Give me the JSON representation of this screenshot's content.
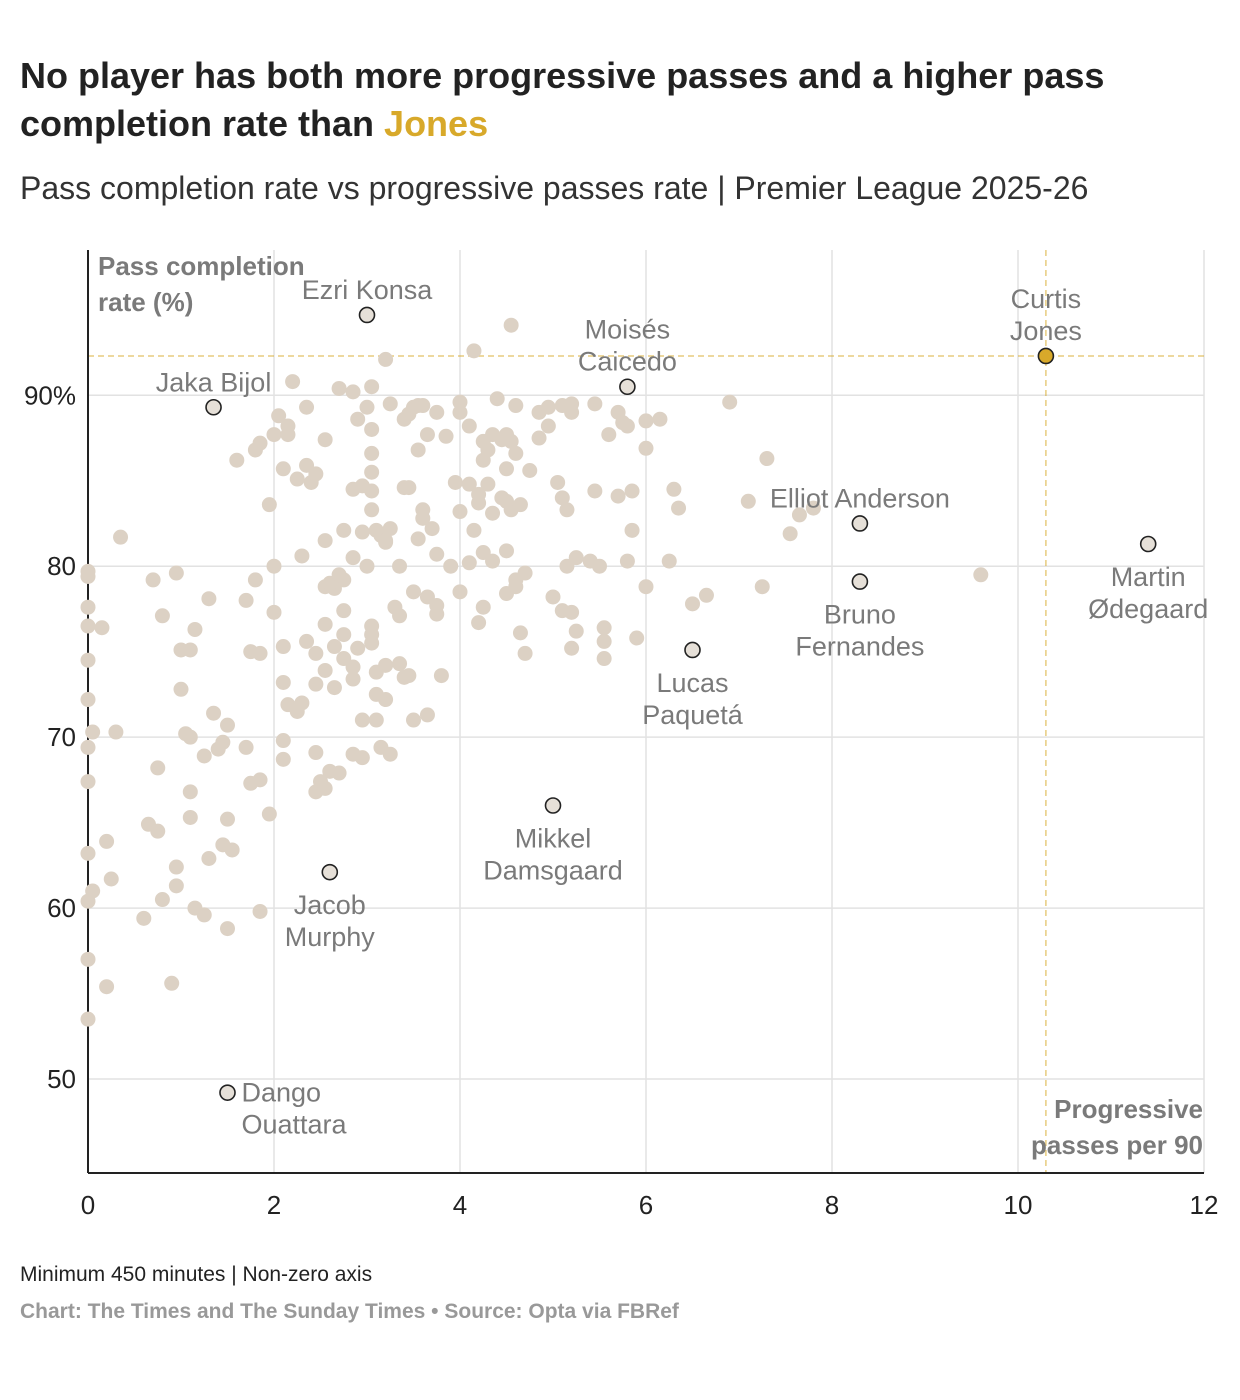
{
  "header": {
    "title_main": "No player has both more progressive passes and a higher pass completion rate than ",
    "title_highlight": "Jones",
    "subtitle": "Pass completion rate vs progressive passes rate | Premier League 2025-26"
  },
  "footer": {
    "note": "Minimum 450 minutes | Non-zero axis",
    "credit": "Chart: The Times and The Sunday Times",
    "separator": " • ",
    "source": "Source: Opta via FBRef"
  },
  "colors": {
    "accent": "#d8a92a",
    "dot": "#dcd1c4",
    "highlight_dot": "#e6e0d8",
    "grid": "#e2e2e2",
    "label": "#7a7a7a"
  },
  "chart_data": {
    "type": "scatter",
    "title": "No player has both more progressive passes and a higher pass completion rate than Jones",
    "subtitle": "Pass completion rate vs progressive passes rate | Premier League 2025-26",
    "xlabel": "Progressive passes per 90",
    "ylabel": "Pass completion rate (%)",
    "xlim": [
      0,
      12
    ],
    "ylim": [
      44.5,
      98.5
    ],
    "xticks": [
      0,
      2,
      4,
      6,
      8,
      10,
      12
    ],
    "yticks": [
      50,
      60,
      70,
      80,
      90
    ],
    "ytick_labels": [
      "50",
      "60",
      "70",
      "80",
      "90%"
    ],
    "reference_lines": {
      "x": 10.3,
      "y": 92.3
    },
    "highlight": {
      "name": "Curtis Jones",
      "x": 10.3,
      "y": 92.3
    },
    "labelled_players": [
      {
        "name": "Ezri Konsa",
        "lines": [
          "Ezri Konsa"
        ],
        "x": 3.0,
        "y": 94.7,
        "label_pos": "above"
      },
      {
        "name": "Jaka Bijol",
        "lines": [
          "Jaka Bijol"
        ],
        "x": 1.35,
        "y": 89.3,
        "label_pos": "above"
      },
      {
        "name": "Moisés Caicedo",
        "lines": [
          "Moisés",
          "Caicedo"
        ],
        "x": 5.8,
        "y": 90.5,
        "label_pos": "above"
      },
      {
        "name": "Curtis Jones",
        "lines": [
          "Curtis",
          "Jones"
        ],
        "x": 10.3,
        "y": 92.3,
        "label_pos": "above"
      },
      {
        "name": "Elliot Anderson",
        "lines": [
          "Elliot Anderson"
        ],
        "x": 8.3,
        "y": 82.5,
        "label_pos": "above"
      },
      {
        "name": "Martin Ødegaard",
        "lines": [
          "Martin",
          "Ødegaard"
        ],
        "x": 11.4,
        "y": 81.3,
        "label_pos": "below"
      },
      {
        "name": "Bruno Fernandes",
        "lines": [
          "Bruno",
          "Fernandes"
        ],
        "x": 8.3,
        "y": 79.1,
        "label_pos": "below"
      },
      {
        "name": "Lucas Paquetá",
        "lines": [
          "Lucas",
          "Paquetá"
        ],
        "x": 6.5,
        "y": 75.1,
        "label_pos": "below"
      },
      {
        "name": "Mikkel Damsgaard",
        "lines": [
          "Mikkel",
          "Damsgaard"
        ],
        "x": 5.0,
        "y": 66.0,
        "label_pos": "below"
      },
      {
        "name": "Jacob Murphy",
        "lines": [
          "Jacob",
          "Murphy"
        ],
        "x": 2.6,
        "y": 62.1,
        "label_pos": "below"
      },
      {
        "name": "Dango Ouattara",
        "lines": [
          "Dango",
          "Ouattara"
        ],
        "x": 1.5,
        "y": 49.2,
        "label_pos": "right"
      }
    ],
    "series": [
      {
        "name": "Other players",
        "points": [
          [
            0.0,
            53.5
          ],
          [
            0.0,
            57.0
          ],
          [
            0.2,
            55.4
          ],
          [
            0.9,
            55.6
          ],
          [
            0.0,
            60.4
          ],
          [
            0.05,
            61.0
          ],
          [
            0.25,
            61.7
          ],
          [
            0.0,
            63.2
          ],
          [
            0.2,
            63.9
          ],
          [
            0.6,
            59.4
          ],
          [
            0.8,
            60.5
          ],
          [
            0.95,
            61.3
          ],
          [
            0.95,
            62.4
          ],
          [
            1.15,
            60.0
          ],
          [
            1.25,
            59.6
          ],
          [
            1.5,
            58.8
          ],
          [
            1.55,
            63.4
          ],
          [
            1.3,
            62.9
          ],
          [
            1.45,
            63.7
          ],
          [
            1.85,
            59.8
          ],
          [
            0.0,
            67.4
          ],
          [
            0.0,
            69.4
          ],
          [
            0.05,
            70.3
          ],
          [
            0.3,
            70.3
          ],
          [
            0.75,
            68.2
          ],
          [
            0.65,
            64.9
          ],
          [
            0.75,
            64.5
          ],
          [
            1.1,
            66.8
          ],
          [
            1.1,
            65.3
          ],
          [
            1.25,
            68.9
          ],
          [
            1.05,
            70.2
          ],
          [
            1.1,
            70.0
          ],
          [
            1.35,
            71.4
          ],
          [
            1.45,
            69.7
          ],
          [
            1.5,
            70.7
          ],
          [
            1.4,
            69.3
          ],
          [
            1.5,
            65.2
          ],
          [
            1.75,
            67.3
          ],
          [
            1.7,
            69.4
          ],
          [
            1.85,
            67.5
          ],
          [
            1.95,
            65.5
          ],
          [
            2.1,
            68.7
          ],
          [
            2.1,
            69.8
          ],
          [
            2.25,
            71.5
          ],
          [
            2.3,
            72.0
          ],
          [
            2.15,
            71.9
          ],
          [
            2.45,
            66.8
          ],
          [
            2.45,
            69.1
          ],
          [
            2.5,
            67.4
          ],
          [
            2.55,
            67.0
          ],
          [
            2.6,
            68.0
          ],
          [
            2.7,
            67.9
          ],
          [
            2.65,
            72.9
          ],
          [
            2.55,
            73.9
          ],
          [
            2.45,
            73.1
          ],
          [
            2.1,
            73.2
          ],
          [
            2.85,
            69.0
          ],
          [
            2.95,
            68.8
          ],
          [
            2.95,
            71.0
          ],
          [
            3.1,
            71.0
          ],
          [
            3.15,
            69.4
          ],
          [
            3.25,
            69.0
          ],
          [
            3.2,
            72.2
          ],
          [
            3.1,
            72.5
          ],
          [
            3.1,
            73.8
          ],
          [
            3.2,
            74.2
          ],
          [
            3.05,
            75.5
          ],
          [
            3.05,
            76.0
          ],
          [
            2.85,
            74.1
          ],
          [
            2.75,
            74.6
          ],
          [
            2.85,
            73.4
          ],
          [
            3.35,
            74.3
          ],
          [
            3.4,
            73.5
          ],
          [
            3.45,
            73.6
          ],
          [
            3.5,
            71.0
          ],
          [
            3.65,
            71.3
          ],
          [
            3.8,
            73.6
          ],
          [
            0.0,
            74.5
          ],
          [
            0.0,
            76.5
          ],
          [
            0.0,
            77.6
          ],
          [
            0.15,
            76.4
          ],
          [
            0.0,
            79.7
          ],
          [
            0.0,
            72.2
          ],
          [
            0.35,
            81.7
          ],
          [
            0.7,
            79.2
          ],
          [
            0.8,
            77.1
          ],
          [
            0.95,
            79.6
          ],
          [
            1.0,
            75.1
          ],
          [
            1.1,
            75.1
          ],
          [
            1.0,
            72.8
          ],
          [
            1.15,
            76.3
          ],
          [
            1.3,
            78.1
          ],
          [
            1.7,
            78.0
          ],
          [
            1.8,
            79.2
          ],
          [
            1.75,
            75.0
          ],
          [
            1.85,
            74.9
          ],
          [
            2.0,
            77.3
          ],
          [
            2.0,
            80.0
          ],
          [
            2.1,
            75.3
          ],
          [
            2.35,
            75.6
          ],
          [
            2.45,
            74.9
          ],
          [
            2.55,
            76.6
          ],
          [
            2.65,
            75.3
          ],
          [
            2.75,
            76.0
          ],
          [
            2.55,
            78.8
          ],
          [
            2.65,
            78.7
          ],
          [
            2.75,
            79.2
          ],
          [
            2.6,
            79.0
          ],
          [
            2.7,
            79.5
          ],
          [
            2.75,
            77.4
          ],
          [
            2.9,
            75.2
          ],
          [
            3.05,
            76.5
          ],
          [
            3.0,
            80.0
          ],
          [
            2.85,
            80.5
          ],
          [
            2.95,
            82.0
          ],
          [
            2.75,
            82.1
          ],
          [
            2.55,
            81.5
          ],
          [
            2.3,
            80.6
          ],
          [
            3.2,
            81.4
          ],
          [
            3.35,
            80.0
          ],
          [
            3.3,
            77.6
          ],
          [
            3.35,
            77.1
          ],
          [
            3.5,
            78.5
          ],
          [
            3.65,
            78.2
          ],
          [
            3.75,
            77.7
          ],
          [
            3.75,
            77.2
          ],
          [
            3.9,
            80.0
          ],
          [
            4.0,
            78.5
          ],
          [
            4.1,
            80.2
          ],
          [
            4.25,
            80.8
          ],
          [
            4.5,
            80.9
          ],
          [
            4.6,
            79.2
          ],
          [
            4.7,
            79.6
          ],
          [
            4.5,
            78.4
          ],
          [
            4.6,
            78.8
          ],
          [
            4.35,
            80.3
          ],
          [
            4.2,
            76.7
          ],
          [
            4.25,
            77.6
          ],
          [
            4.65,
            76.1
          ],
          [
            4.7,
            74.9
          ],
          [
            4.15,
            82.1
          ],
          [
            4.0,
            83.2
          ],
          [
            4.2,
            83.7
          ],
          [
            4.35,
            83.1
          ],
          [
            4.45,
            84.0
          ],
          [
            4.55,
            83.3
          ],
          [
            4.5,
            83.8
          ],
          [
            4.65,
            83.6
          ],
          [
            4.3,
            84.8
          ],
          [
            4.2,
            84.2
          ],
          [
            4.1,
            84.8
          ],
          [
            3.95,
            84.9
          ],
          [
            4.5,
            85.7
          ],
          [
            4.25,
            86.2
          ],
          [
            4.3,
            86.8
          ],
          [
            4.45,
            87.4
          ],
          [
            4.55,
            87.3
          ],
          [
            4.6,
            86.6
          ],
          [
            4.75,
            85.6
          ],
          [
            4.35,
            87.7
          ],
          [
            4.5,
            87.7
          ],
          [
            4.25,
            87.3
          ],
          [
            4.1,
            88.2
          ],
          [
            4.0,
            89.6
          ],
          [
            4.0,
            89.0
          ],
          [
            4.4,
            89.8
          ],
          [
            4.6,
            89.4
          ],
          [
            4.85,
            89.0
          ],
          [
            4.95,
            89.3
          ],
          [
            5.1,
            89.4
          ],
          [
            5.2,
            89.5
          ],
          [
            5.2,
            89.0
          ],
          [
            4.85,
            87.5
          ],
          [
            4.95,
            88.2
          ],
          [
            5.45,
            89.5
          ],
          [
            5.75,
            88.4
          ],
          [
            5.7,
            89.0
          ],
          [
            5.6,
            87.7
          ],
          [
            5.8,
            88.2
          ],
          [
            6.0,
            88.5
          ],
          [
            6.15,
            88.6
          ],
          [
            6.0,
            86.9
          ],
          [
            5.85,
            84.4
          ],
          [
            5.7,
            84.1
          ],
          [
            5.85,
            82.1
          ],
          [
            5.8,
            80.3
          ],
          [
            5.5,
            80.0
          ],
          [
            5.4,
            80.3
          ],
          [
            5.25,
            80.5
          ],
          [
            5.1,
            84.0
          ],
          [
            5.15,
            83.3
          ],
          [
            5.05,
            84.9
          ],
          [
            5.45,
            84.4
          ],
          [
            5.15,
            80.0
          ],
          [
            5.0,
            78.2
          ],
          [
            5.1,
            77.4
          ],
          [
            5.2,
            77.3
          ],
          [
            5.2,
            75.2
          ],
          [
            5.25,
            76.2
          ],
          [
            5.55,
            76.4
          ],
          [
            5.55,
            75.6
          ],
          [
            5.55,
            74.6
          ],
          [
            5.9,
            75.8
          ],
          [
            6.0,
            78.8
          ],
          [
            6.25,
            80.3
          ],
          [
            6.3,
            84.5
          ],
          [
            6.35,
            83.4
          ],
          [
            6.5,
            77.8
          ],
          [
            6.65,
            78.3
          ],
          [
            7.1,
            83.8
          ],
          [
            7.25,
            78.8
          ],
          [
            7.55,
            81.9
          ],
          [
            7.65,
            83.0
          ],
          [
            7.8,
            83.4
          ],
          [
            7.3,
            86.3
          ],
          [
            6.9,
            89.6
          ],
          [
            9.6,
            79.5
          ],
          [
            0.0,
            79.4
          ],
          [
            1.6,
            86.2
          ],
          [
            1.8,
            86.8
          ],
          [
            1.85,
            87.2
          ],
          [
            1.95,
            83.6
          ],
          [
            2.0,
            87.7
          ],
          [
            2.05,
            88.8
          ],
          [
            2.1,
            85.7
          ],
          [
            2.15,
            87.7
          ],
          [
            2.2,
            90.8
          ],
          [
            2.25,
            85.1
          ],
          [
            2.35,
            89.3
          ],
          [
            2.35,
            85.9
          ],
          [
            2.4,
            84.9
          ],
          [
            2.45,
            85.4
          ],
          [
            2.55,
            87.4
          ],
          [
            2.7,
            90.4
          ],
          [
            2.9,
            88.6
          ],
          [
            2.85,
            90.2
          ],
          [
            3.0,
            89.3
          ],
          [
            3.05,
            88.0
          ],
          [
            3.05,
            86.6
          ],
          [
            3.05,
            85.5
          ],
          [
            3.05,
            83.3
          ],
          [
            3.05,
            84.4
          ],
          [
            3.1,
            82.1
          ],
          [
            3.15,
            81.8
          ],
          [
            3.25,
            82.2
          ],
          [
            3.2,
            81.5
          ],
          [
            2.85,
            84.5
          ],
          [
            2.95,
            84.7
          ],
          [
            3.2,
            92.1
          ],
          [
            3.25,
            89.5
          ],
          [
            3.05,
            90.5
          ],
          [
            3.4,
            84.6
          ],
          [
            3.45,
            84.6
          ],
          [
            3.55,
            81.6
          ],
          [
            3.6,
            82.8
          ],
          [
            3.6,
            83.3
          ],
          [
            3.7,
            82.2
          ],
          [
            3.55,
            86.8
          ],
          [
            3.65,
            87.7
          ],
          [
            3.85,
            87.6
          ],
          [
            3.75,
            89.0
          ],
          [
            3.55,
            89.4
          ],
          [
            3.6,
            89.4
          ],
          [
            3.5,
            89.3
          ],
          [
            3.45,
            88.9
          ],
          [
            3.4,
            88.6
          ],
          [
            3.75,
            80.7
          ],
          [
            4.15,
            92.6
          ],
          [
            4.55,
            94.1
          ],
          [
            2.15,
            88.2
          ]
        ]
      }
    ]
  }
}
